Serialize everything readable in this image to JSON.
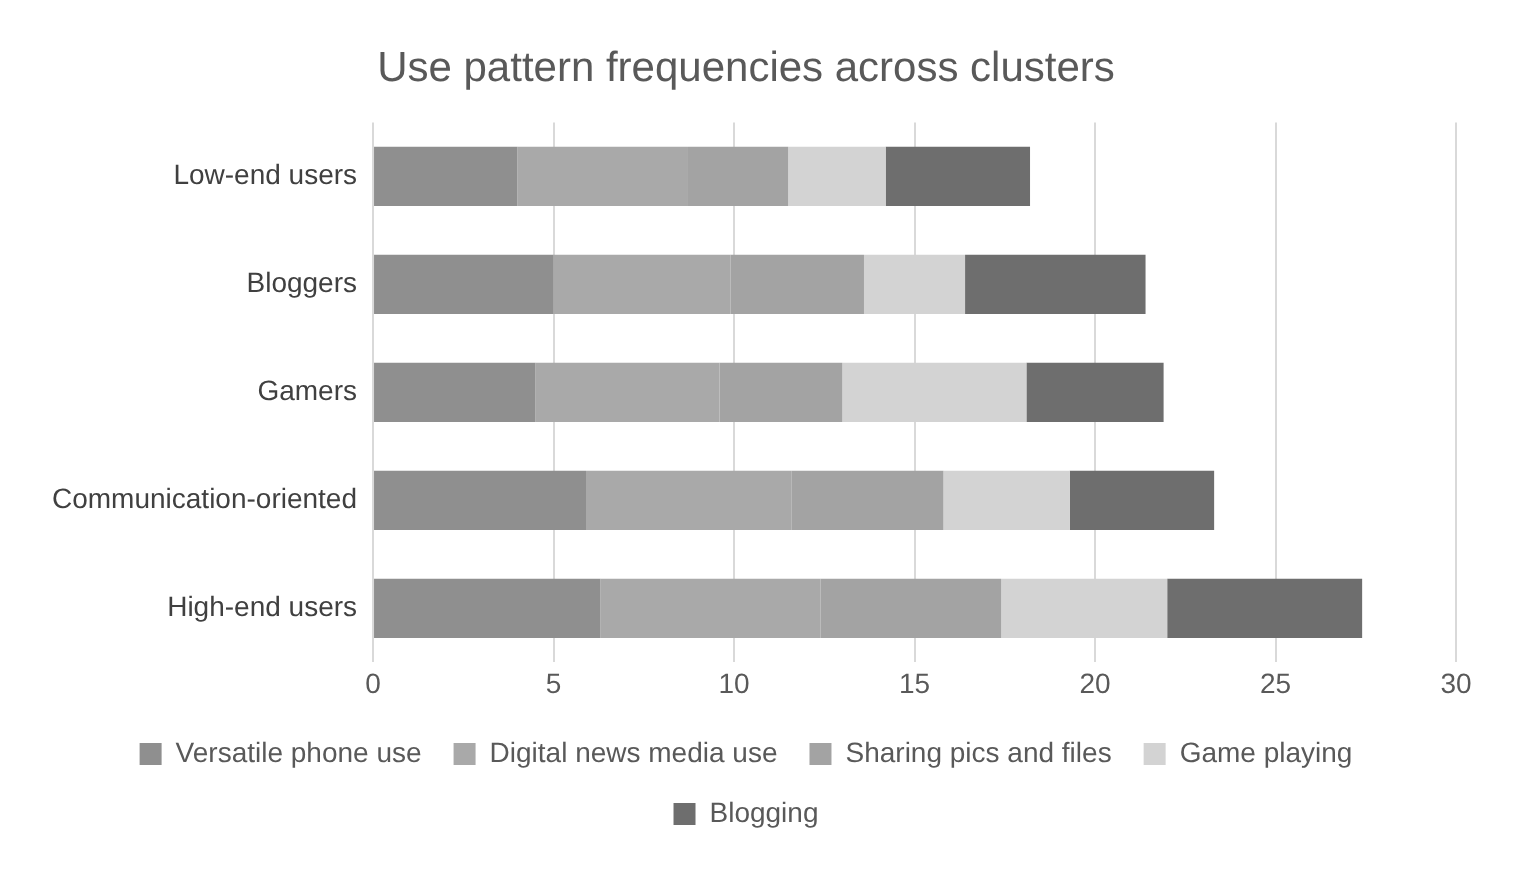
{
  "chart_data": {
    "type": "bar",
    "orientation": "horizontal",
    "stacked": true,
    "title": "Use pattern frequencies across clusters",
    "categories": [
      "Low-end users",
      "Bloggers",
      "Gamers",
      "Communication-oriented",
      "High-end users"
    ],
    "series": [
      {
        "name": "Versatile phone use",
        "color": "#8f8f8f",
        "values": [
          4.0,
          5.0,
          4.5,
          5.9,
          6.3
        ]
      },
      {
        "name": "Digital news media use",
        "color": "#a9a9a9",
        "values": [
          4.7,
          4.9,
          5.1,
          5.7,
          6.1
        ]
      },
      {
        "name": "Sharing pics and files",
        "color": "#a3a3a3",
        "values": [
          2.8,
          3.7,
          3.4,
          4.2,
          5.0
        ]
      },
      {
        "name": "Game playing",
        "color": "#d3d3d3",
        "values": [
          2.7,
          2.8,
          5.1,
          3.5,
          4.6
        ]
      },
      {
        "name": "Blogging",
        "color": "#6e6e6e",
        "values": [
          4.0,
          5.0,
          3.8,
          4.0,
          5.4
        ]
      }
    ],
    "xlim": [
      0,
      30
    ],
    "xticks": [
      0,
      5,
      10,
      15,
      20,
      25,
      30
    ],
    "grid": "x",
    "legend": "bottom"
  }
}
